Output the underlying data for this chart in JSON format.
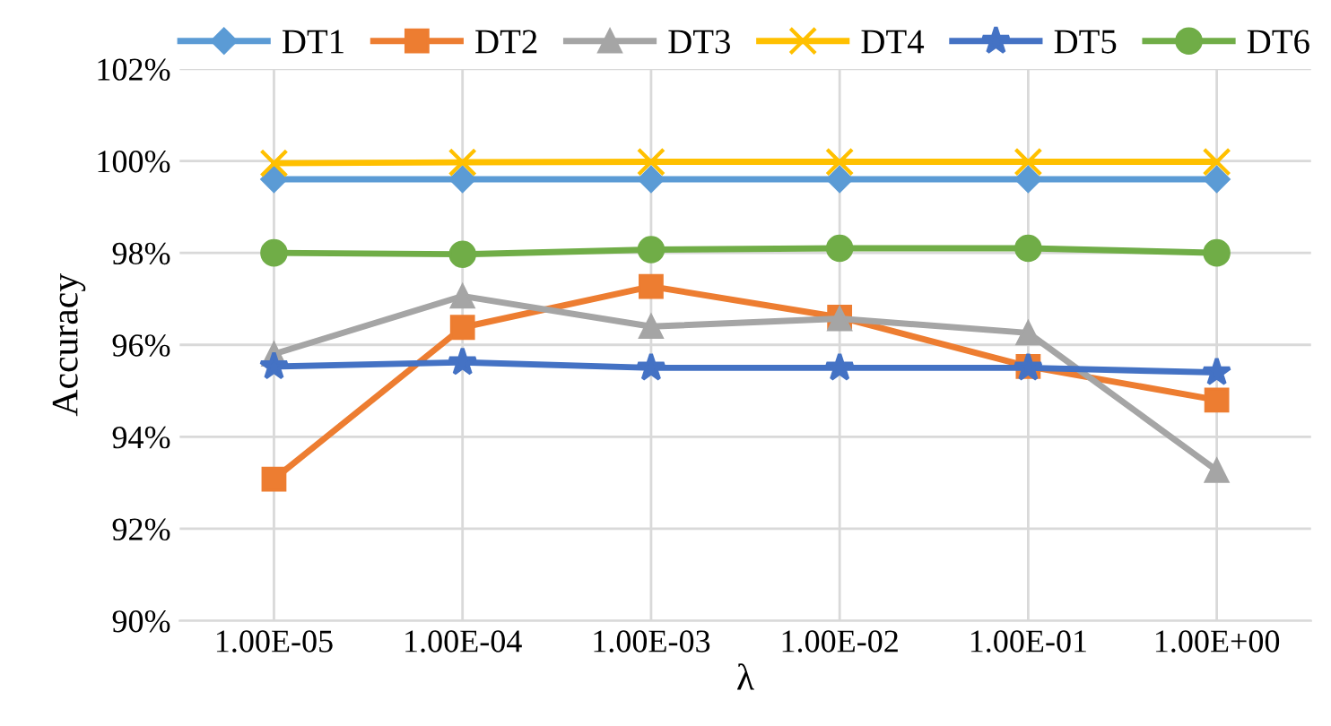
{
  "chart_data": {
    "type": "line",
    "xlabel": "λ",
    "ylabel": "Accuracy",
    "categories": [
      "1.00E-05",
      "1.00E-04",
      "1.00E-03",
      "1.00E-02",
      "1.00E-01",
      "1.00E+00"
    ],
    "series": [
      {
        "name": "DT1",
        "color": "#5b9bd5",
        "marker": "diamond",
        "values": [
          99.6,
          99.6,
          99.6,
          99.6,
          99.6,
          99.6
        ]
      },
      {
        "name": "DT2",
        "color": "#ed7d31",
        "marker": "square",
        "values": [
          93.08,
          96.38,
          97.27,
          96.6,
          95.53,
          94.8
        ]
      },
      {
        "name": "DT3",
        "color": "#a5a5a5",
        "marker": "triangle",
        "values": [
          95.8,
          97.06,
          96.4,
          96.57,
          96.26,
          93.27
        ]
      },
      {
        "name": "DT4",
        "color": "#ffc000",
        "marker": "cross",
        "values": [
          99.95,
          99.97,
          99.98,
          99.98,
          99.98,
          99.98
        ]
      },
      {
        "name": "DT5",
        "color": "#4472c4",
        "marker": "star",
        "values": [
          95.53,
          95.62,
          95.5,
          95.5,
          95.5,
          95.4
        ]
      },
      {
        "name": "DT6",
        "color": "#70ad47",
        "marker": "circle",
        "values": [
          98.0,
          97.97,
          98.07,
          98.1,
          98.1,
          98.0
        ]
      }
    ],
    "ylim": [
      90,
      102
    ],
    "yticks": [
      {
        "value": 90,
        "label": "90%"
      },
      {
        "value": 92,
        "label": "92%"
      },
      {
        "value": 94,
        "label": "94%"
      },
      {
        "value": 96,
        "label": "96%"
      },
      {
        "value": 98,
        "label": "98%"
      },
      {
        "value": 100,
        "label": "100%"
      },
      {
        "value": 102,
        "label": "102%"
      }
    ],
    "grid": true,
    "legend": "top",
    "line_style": "solid"
  }
}
